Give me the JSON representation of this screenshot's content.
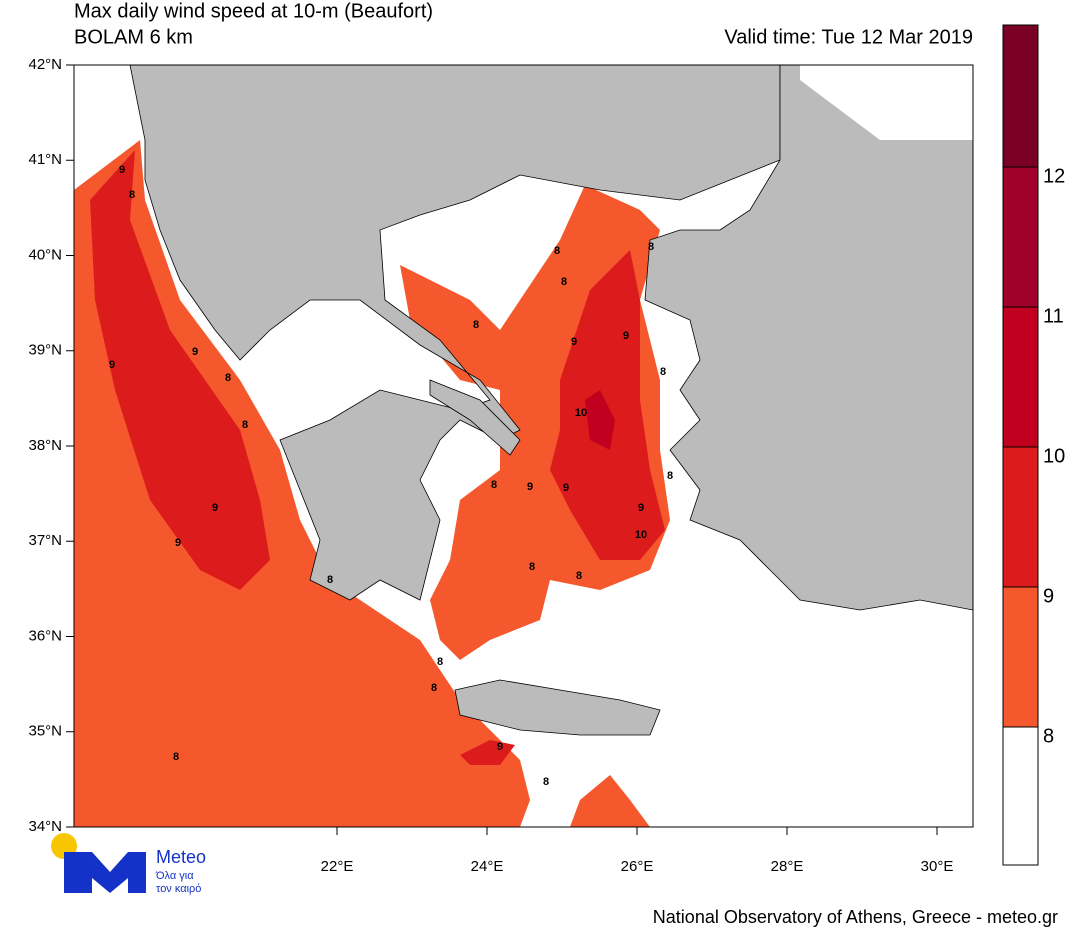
{
  "header": {
    "title": "Max daily wind speed at 10-m (Beaufort)",
    "model": "BOLAM 6 km",
    "valid_time": "Valid time: Tue 12 Mar 2019"
  },
  "map": {
    "lat_ticks": [
      {
        "value": 34,
        "label": "34°N"
      },
      {
        "value": 35,
        "label": "35°N"
      },
      {
        "value": 36,
        "label": "36°N"
      },
      {
        "value": 37,
        "label": "37°N"
      },
      {
        "value": 38,
        "label": "38°N"
      },
      {
        "value": 39,
        "label": "39°N"
      },
      {
        "value": 40,
        "label": "40°N"
      },
      {
        "value": 41,
        "label": "41°N"
      },
      {
        "value": 42,
        "label": "42°N"
      }
    ],
    "lon_ticks": [
      {
        "value": 22,
        "label": "22°E"
      },
      {
        "value": 24,
        "label": "24°E"
      },
      {
        "value": 26,
        "label": "26°E"
      },
      {
        "value": 28,
        "label": "28°E"
      },
      {
        "value": 30,
        "label": "30°E"
      }
    ],
    "contour_labels": [
      "9",
      "8",
      "9",
      "9",
      "8",
      "8",
      "9",
      "9",
      "8",
      "8",
      "8",
      "8",
      "9",
      "8",
      "8",
      "8",
      "8",
      "9",
      "9",
      "8",
      "8",
      "10",
      "8",
      "8",
      "9",
      "9",
      "9",
      "10",
      "8",
      "8"
    ]
  },
  "colorbar": {
    "levels": [
      8,
      9,
      10,
      11,
      12
    ],
    "colors": [
      "#ffffff",
      "#f4582c",
      "#dc1c1c",
      "#c0001e",
      "#a0002a",
      "#7a0026"
    ]
  },
  "logo": {
    "name": "Meteo",
    "tagline_1": "Όλα για",
    "tagline_2": "τον καιρό"
  },
  "footer": "National Observatory of Athens, Greece - meteo.gr"
}
